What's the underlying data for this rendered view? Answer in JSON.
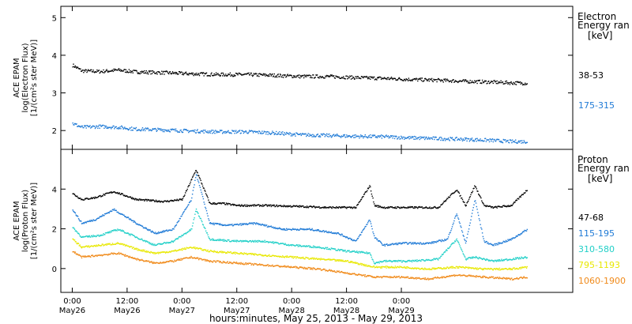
{
  "chart_data": [
    {
      "type": "scatter",
      "panel": "electron",
      "ylabel_lines": [
        "ACE EPAM",
        "log(Electron Flux)",
        "[1/(cm²s ster MeV)]"
      ],
      "ylim": [
        1.5,
        5.3
      ],
      "yticks": [
        2,
        3,
        4,
        5
      ],
      "legend_title": [
        "Electron",
        "Energy ran"
      ],
      "legend_unit": "[keV]",
      "series": [
        {
          "name": "38-53",
          "color": "#000000",
          "t": [
            0,
            2,
            6,
            10,
            14,
            20,
            26,
            32,
            38,
            44,
            50,
            56,
            62,
            68,
            74,
            80,
            86,
            92,
            96,
            99.5
          ],
          "y": [
            3.75,
            3.6,
            3.58,
            3.62,
            3.57,
            3.55,
            3.52,
            3.5,
            3.5,
            3.48,
            3.45,
            3.45,
            3.42,
            3.4,
            3.37,
            3.35,
            3.32,
            3.3,
            3.28,
            3.27
          ]
        },
        {
          "name": "175-315",
          "color": "#1f7ad6",
          "t": [
            0,
            2,
            6,
            10,
            14,
            20,
            26,
            32,
            38,
            44,
            50,
            56,
            62,
            68,
            74,
            80,
            86,
            92,
            96,
            99.5
          ],
          "y": [
            2.2,
            2.1,
            2.12,
            2.1,
            2.05,
            2.03,
            2.0,
            1.98,
            1.98,
            1.95,
            1.9,
            1.88,
            1.86,
            1.85,
            1.82,
            1.8,
            1.78,
            1.75,
            1.72,
            1.72
          ]
        }
      ]
    },
    {
      "type": "scatter",
      "panel": "proton",
      "ylabel_lines": [
        "ACE EPAM",
        "log(Proton Flux)",
        "[1/(cm²s ster MeV)]"
      ],
      "ylim": [
        -1.2,
        6
      ],
      "yticks": [
        0,
        2,
        4
      ],
      "legend_title": [
        "Proton",
        "Energy ran"
      ],
      "legend_unit": "[keV]",
      "series": [
        {
          "name": "47-68",
          "color": "#000000",
          "t": [
            0,
            2,
            5,
            9,
            14,
            20,
            24,
            27,
            30,
            33,
            36,
            42,
            50,
            56,
            62,
            65,
            66,
            68,
            70,
            74,
            80,
            84,
            86,
            88,
            90,
            92,
            96,
            99.5
          ],
          "y": [
            3.8,
            3.5,
            3.6,
            3.9,
            3.5,
            3.4,
            3.5,
            5.0,
            3.3,
            3.3,
            3.2,
            3.2,
            3.15,
            3.1,
            3.1,
            4.2,
            3.2,
            3.1,
            3.1,
            3.1,
            3.1,
            4.0,
            3.2,
            4.2,
            3.2,
            3.1,
            3.2,
            4.0
          ]
        },
        {
          "name": "115-195",
          "color": "#1f7ad6",
          "t": [
            0,
            2,
            5,
            9,
            14,
            18,
            22,
            26,
            27,
            30,
            34,
            40,
            46,
            52,
            58,
            62,
            65,
            66,
            68,
            72,
            78,
            82,
            84,
            86,
            88,
            90,
            92,
            96,
            99.5
          ],
          "y": [
            3.0,
            2.3,
            2.5,
            3.0,
            2.3,
            1.8,
            2.0,
            3.5,
            4.8,
            2.3,
            2.2,
            2.3,
            2.0,
            2.0,
            1.8,
            1.4,
            2.5,
            1.6,
            1.2,
            1.3,
            1.3,
            1.5,
            2.8,
            1.3,
            3.5,
            1.4,
            1.2,
            1.5,
            2.0
          ]
        },
        {
          "name": "310-580",
          "color": "#22d0c8",
          "t": [
            0,
            2,
            6,
            10,
            14,
            18,
            22,
            26,
            27,
            30,
            36,
            42,
            48,
            54,
            60,
            65,
            66,
            68,
            74,
            80,
            84,
            86,
            88,
            92,
            96,
            99.5
          ],
          "y": [
            2.1,
            1.6,
            1.7,
            2.0,
            1.6,
            1.2,
            1.4,
            2.0,
            3.0,
            1.5,
            1.4,
            1.4,
            1.2,
            1.1,
            0.9,
            0.8,
            0.3,
            0.4,
            0.4,
            0.5,
            1.5,
            0.5,
            0.6,
            0.4,
            0.5,
            0.6
          ]
        },
        {
          "name": "795-1193",
          "color": "#e8e800",
          "t": [
            0,
            2,
            6,
            10,
            14,
            18,
            22,
            26,
            30,
            36,
            42,
            48,
            54,
            60,
            66,
            72,
            78,
            84,
            90,
            96,
            99.5
          ],
          "y": [
            1.5,
            1.1,
            1.2,
            1.3,
            1.0,
            0.8,
            0.9,
            1.1,
            0.9,
            0.8,
            0.7,
            0.6,
            0.5,
            0.4,
            0.1,
            0.1,
            0.0,
            0.1,
            0.0,
            0.0,
            0.1
          ]
        },
        {
          "name": "1060-1900",
          "color": "#f08a1a",
          "t": [
            0,
            2,
            6,
            10,
            14,
            18,
            22,
            26,
            30,
            36,
            42,
            48,
            54,
            60,
            66,
            72,
            78,
            84,
            90,
            96,
            99.5
          ],
          "y": [
            0.9,
            0.6,
            0.7,
            0.8,
            0.5,
            0.3,
            0.4,
            0.6,
            0.4,
            0.3,
            0.2,
            0.1,
            0.0,
            -0.2,
            -0.4,
            -0.4,
            -0.5,
            -0.3,
            -0.4,
            -0.5,
            -0.4
          ]
        }
      ]
    }
  ],
  "x_axis": {
    "range_hours": [
      -2.5,
      109.5
    ],
    "ticks": [
      {
        "t": 0,
        "top": "0:00",
        "bottom": "May26"
      },
      {
        "t": 12,
        "top": "12:00",
        "bottom": "May26"
      },
      {
        "t": 24,
        "top": "0:00",
        "bottom": "May27"
      },
      {
        "t": 36,
        "top": "12:00",
        "bottom": "May27"
      },
      {
        "t": 48,
        "top": "0:00",
        "bottom": "May28"
      },
      {
        "t": 60,
        "top": "12:00",
        "bottom": "May28"
      },
      {
        "t": 72,
        "top": "0:00",
        "bottom": "May29"
      }
    ],
    "xlabel": "hours:minutes, May 25, 2013 - May 29, 2013"
  }
}
